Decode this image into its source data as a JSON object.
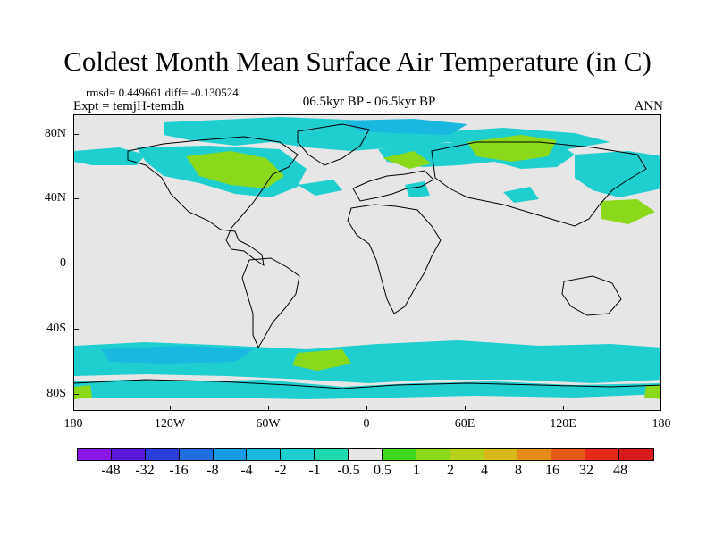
{
  "title": "Coldest Month Mean Surface Air Temperature (in C)",
  "stats": "rmsd= 0.449661 diff= -0.130524",
  "experiment": "Expt = temjH-temdh",
  "period": "06.5kyr BP - 06.5kyr BP",
  "season": "ANN",
  "axes": {
    "lat_labels": [
      "80N",
      "40N",
      "0",
      "40S",
      "80S"
    ],
    "lon_labels": [
      "180",
      "120W",
      "60W",
      "0",
      "60E",
      "120E",
      "180"
    ]
  },
  "colorbar": {
    "labels": [
      "-48",
      "-32",
      "-16",
      "-8",
      "-4",
      "-2",
      "-1",
      "-0.5",
      "0.5",
      "1",
      "2",
      "4",
      "8",
      "16",
      "32",
      "48"
    ],
    "colors": [
      "#8a17e6",
      "#5a17d9",
      "#2a3fd9",
      "#1f6fe0",
      "#1a9be6",
      "#19b8e0",
      "#1fcfcf",
      "#20d9b0",
      "#e6e6e6",
      "#40d920",
      "#8ad91a",
      "#b8d11a",
      "#d9b81a",
      "#e68a1a",
      "#e65a1a",
      "#e62a1a",
      "#d91a1a"
    ]
  },
  "legend_colors": {
    "weak_cool": "#1fcfcf",
    "cool": "#19b8e0",
    "weak_warm": "#8ad91a",
    "no_change": "#e6e6e6"
  }
}
